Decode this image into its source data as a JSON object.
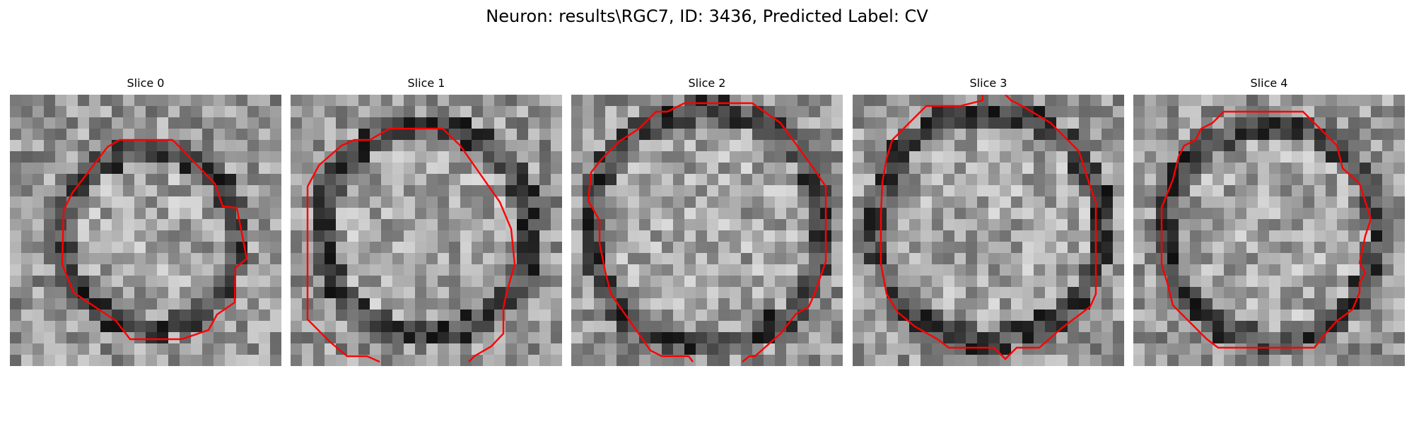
{
  "figure": {
    "title": "Neuron: results\\RGC7, ID: 3436, Predicted Label: CV"
  },
  "panels": [
    {
      "title": "Slice 0",
      "contour_color": "#ff0000"
    },
    {
      "title": "Slice 1",
      "contour_color": "#ff0000"
    },
    {
      "title": "Slice 2",
      "contour_color": "#ff0000"
    },
    {
      "title": "Slice 3",
      "contour_color": "#ff0000"
    },
    {
      "title": "Slice 4",
      "contour_color": "#ff0000"
    }
  ]
}
